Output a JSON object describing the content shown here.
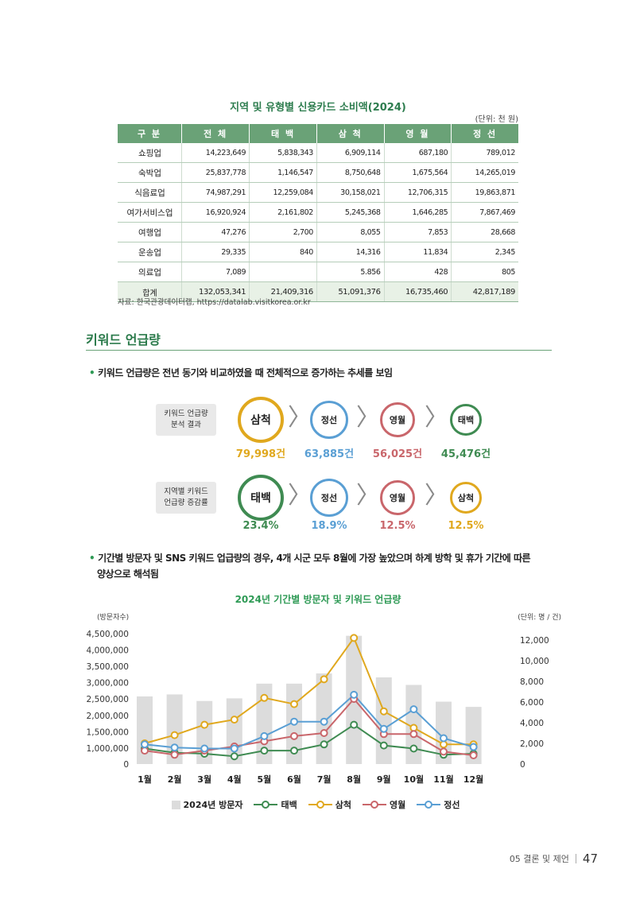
{
  "table": {
    "title": "지역 및 유형별 신용카드 소비액(2024)",
    "unit": "(단위: 천 원)",
    "headers": [
      "구 분",
      "전 체",
      "태 백",
      "삼 척",
      "영 월",
      "정 선"
    ],
    "rows": [
      [
        "쇼핑업",
        "14,223,649",
        "5,838,343",
        "6,909,114",
        "687,180",
        "789,012"
      ],
      [
        "숙박업",
        "25,837,778",
        "1,146,547",
        "8,750,648",
        "1,675,564",
        "14,265,019"
      ],
      [
        "식음료업",
        "74,987,291",
        "12,259,084",
        "30,158,021",
        "12,706,315",
        "19,863,871"
      ],
      [
        "여가서비스업",
        "16,920,924",
        "2,161,802",
        "5,245,368",
        "1,646,285",
        "7,867,469"
      ],
      [
        "여행업",
        "47,276",
        "2,700",
        "8,055",
        "7,853",
        "28,668"
      ],
      [
        "운송업",
        "29,335",
        "840",
        "14,316",
        "11,834",
        "2,345"
      ],
      [
        "의료업",
        "7,089",
        "",
        "5.856",
        "428",
        "805"
      ]
    ],
    "total": [
      "합계",
      "132,053,341",
      "21,409,316",
      "51,091,376",
      "16,735,460",
      "42,817,189"
    ],
    "source": "자료: 한국관광데이터랩, https://datalab.visitkorea.or.kr"
  },
  "section": {
    "title": "키워드 언급량",
    "bullet1": "키워드 언급량은 전년 동기와 비교하였을 때 전체적으로 증가하는 추세를 보임",
    "bullet2_line1": "기간별 방문자 및 SNS 키워드 업급량의 경우, 4개 시군 모두 8월에 가장 높았으며 하계 방학 및 휴가 기간에 따른",
    "bullet2_line2": "양상으로 해석됨"
  },
  "ranking": {
    "row1": {
      "label_line1": "키워드 언급량",
      "label_line2": "분석 결과",
      "items": [
        {
          "name": "삼척",
          "value": "79,998건",
          "color": "#e0a81e"
        },
        {
          "name": "정선",
          "value": "63,885건",
          "color": "#5a9fd4"
        },
        {
          "name": "영월",
          "value": "56,025건",
          "color": "#c9666b"
        },
        {
          "name": "태백",
          "value": "45,476건",
          "color": "#3f8b52"
        }
      ]
    },
    "row2": {
      "label_line1": "지역별 키워드",
      "label_line2": "언급량 증감률",
      "items": [
        {
          "name": "태백",
          "value": "23.4%",
          "color": "#3f8b52"
        },
        {
          "name": "정선",
          "value": "18.9%",
          "color": "#5a9fd4"
        },
        {
          "name": "영월",
          "value": "12.5%",
          "color": "#c9666b"
        },
        {
          "name": "삼척",
          "value": "12.5%",
          "color": "#e0a81e"
        }
      ]
    }
  },
  "chart_data": {
    "type": "bar",
    "title": "2024년 기간별 방문자 및 키워드 언급량",
    "left_axis_label": "(방문자수)",
    "right_axis_label": "(단위: 명 / 건)",
    "categories": [
      "1월",
      "2월",
      "3월",
      "4월",
      "5월",
      "6월",
      "7월",
      "8월",
      "9월",
      "10월",
      "11월",
      "12월"
    ],
    "left_ticks": [
      "0",
      "1,000,000",
      "1,500,000",
      "2,000,000",
      "2,500,000",
      "3,000,000",
      "3,500,000",
      "4,000,000",
      "4,500,000"
    ],
    "right_ticks": [
      "0",
      "2,000",
      "4,000",
      "6,000",
      "8,000",
      "10,000",
      "12,000"
    ],
    "bars": {
      "name": "2024년 방문자",
      "color": "#dcdcdc",
      "values": [
        2580000,
        2640000,
        2440000,
        2520000,
        2970000,
        2970000,
        3280000,
        4430000,
        3160000,
        2930000,
        2420000,
        2260000
      ]
    },
    "series": [
      {
        "name": "태백",
        "color": "#3f8b52",
        "values": [
          1500,
          1100,
          1000,
          750,
          1300,
          1300,
          1900,
          3800,
          1800,
          1500,
          900,
          1000
        ]
      },
      {
        "name": "삼척",
        "color": "#e0a81e",
        "values": [
          2000,
          2800,
          3800,
          4300,
          6400,
          5800,
          8200,
          12200,
          5100,
          3500,
          1900,
          1900
        ]
      },
      {
        "name": "영월",
        "color": "#c9666b",
        "values": [
          1300,
          900,
          1300,
          1700,
          2200,
          2700,
          3000,
          6300,
          2900,
          2900,
          1200,
          850
        ]
      },
      {
        "name": "정선",
        "color": "#5a9fd4",
        "values": [
          1900,
          1600,
          1500,
          1500,
          2700,
          4100,
          4100,
          6700,
          3400,
          5300,
          2500,
          1650
        ]
      }
    ]
  },
  "footer": {
    "chapter": "05 결론 및 제언",
    "page": "47"
  }
}
